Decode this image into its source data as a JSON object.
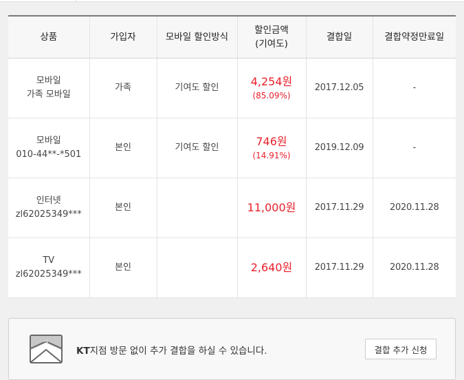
{
  "table": {
    "headers": [
      "상품",
      "가입자",
      "모바일 할인방식",
      "할인금액\n(기여도)",
      "결합일",
      "결합약정만료일"
    ],
    "header_amount_line1": "할인금액",
    "header_amount_line2": "(기여도)",
    "rows": [
      {
        "product_line1": "모바일",
        "product_line2": "가족 모바일",
        "subscriber": "가족",
        "method": "기여도 할인",
        "amount": "4,254원",
        "contribution": "(85.09%)",
        "join_date": "2017.12.05",
        "expiry": "-"
      },
      {
        "product_line1": "모바일",
        "product_line2": "010-44**-*501",
        "subscriber": "본인",
        "method": "기여도 할인",
        "amount": "746원",
        "contribution": "(14.91%)",
        "join_date": "2019.12.09",
        "expiry": "-"
      },
      {
        "product_line1": "인터넷",
        "product_line2": "zl62025349***",
        "subscriber": "본인",
        "method": "",
        "amount": "11,000원",
        "contribution": "",
        "join_date": "2017.11.29",
        "expiry": "2020.11.28"
      },
      {
        "product_line1": "TV",
        "product_line2": "zl62025349***",
        "subscriber": "본인",
        "method": "",
        "amount": "2,640원",
        "contribution": "",
        "join_date": "2017.11.29",
        "expiry": "2020.11.28"
      }
    ]
  },
  "notice": {
    "icon": "envelope-question-icon",
    "brand": "KT",
    "message": "지점 방문 없이 추가 결합을 하실 수 있습니다.",
    "button_label": "결합 추가 신청"
  },
  "colors": {
    "discount": "#e8202a"
  }
}
